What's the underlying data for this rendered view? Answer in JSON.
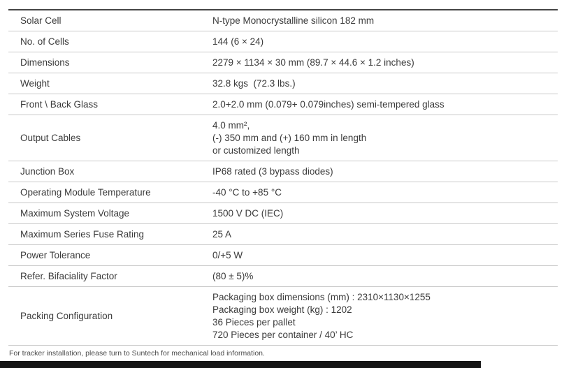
{
  "table": {
    "rows": [
      {
        "label": "Solar Cell",
        "values": [
          "N-type Monocrystalline silicon 182 mm"
        ]
      },
      {
        "label": "No. of Cells",
        "values": [
          "144 (6 × 24)"
        ]
      },
      {
        "label": "Dimensions",
        "values": [
          "2279 × 1134 × 30 mm (89.7 × 44.6 × 1.2 inches)"
        ]
      },
      {
        "label": "Weight",
        "values": [
          "32.8 kgs  (72.3 lbs.)"
        ]
      },
      {
        "label": "Front \\ Back Glass",
        "values": [
          "2.0+2.0 mm (0.079+ 0.079inches) semi-tempered glass"
        ]
      },
      {
        "label": "Output Cables",
        "values": [
          "4.0 mm²,",
          "(-) 350 mm and (+) 160 mm in length",
          "or customized length"
        ]
      },
      {
        "label": "Junction Box",
        "values": [
          "IP68 rated (3 bypass diodes)"
        ]
      },
      {
        "label": "Operating Module Temperature",
        "values": [
          "-40 °C to +85 °C"
        ]
      },
      {
        "label": "Maximum System Voltage",
        "values": [
          "1500 V DC (IEC)"
        ]
      },
      {
        "label": "Maximum Series Fuse Rating",
        "values": [
          "25 A"
        ]
      },
      {
        "label": "Power Tolerance",
        "values": [
          "0/+5 W"
        ]
      },
      {
        "label": "Refer. Bifaciality Factor",
        "values": [
          "(80 ± 5)%"
        ]
      },
      {
        "label": "Packing Configuration",
        "values": [
          "Packaging box dimensions (mm) : 2310×1130×1255",
          "Packaging box weight (kg) : 1202",
          "36 Pieces per pallet",
          "720 Pieces per container / 40’ HC"
        ]
      }
    ]
  },
  "footer": {
    "note": "For tracker installation, please turn to Suntech for mechanical load information."
  }
}
